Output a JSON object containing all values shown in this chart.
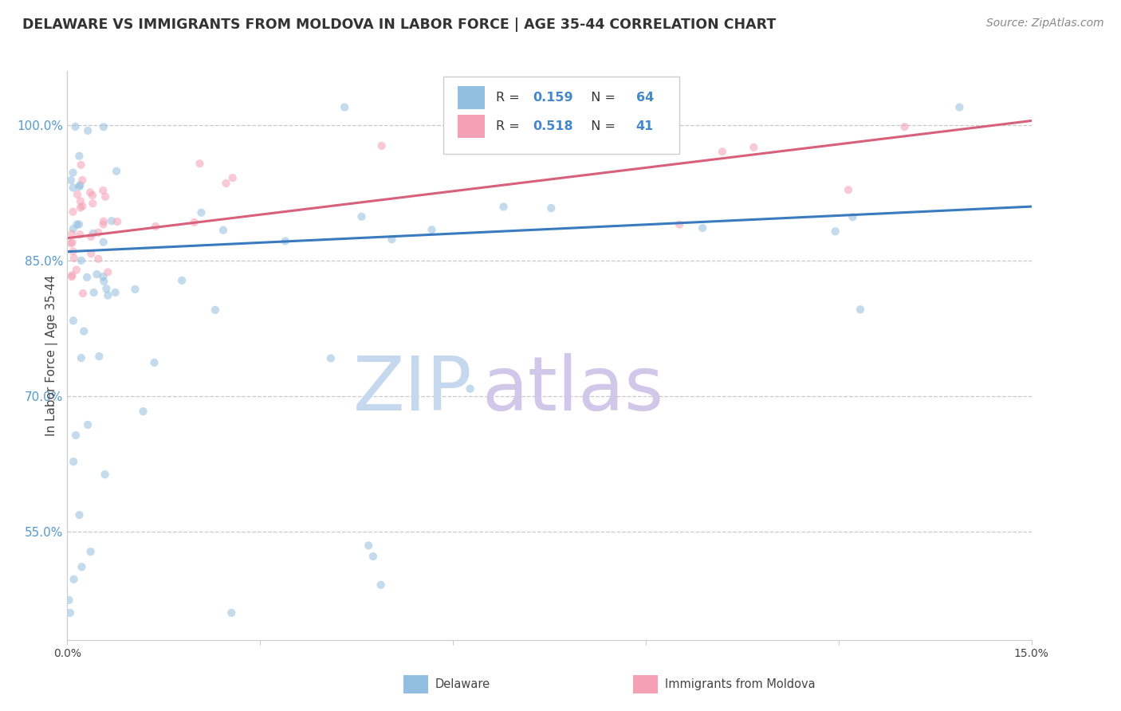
{
  "title": "DELAWARE VS IMMIGRANTS FROM MOLDOVA IN LABOR FORCE | AGE 35-44 CORRELATION CHART",
  "source": "Source: ZipAtlas.com",
  "ylabel": "In Labor Force | Age 35-44",
  "xlim": [
    0.0,
    0.15
  ],
  "ylim": [
    0.43,
    1.06
  ],
  "xticks": [
    0.0,
    0.03,
    0.06,
    0.09,
    0.12,
    0.15
  ],
  "yticks": [
    0.55,
    0.7,
    0.85,
    1.0
  ],
  "yticklabels": [
    "55.0%",
    "70.0%",
    "85.0%",
    "100.0%"
  ],
  "watermark_line1": "ZIP",
  "watermark_line2": "atlas",
  "legend_entries": [
    {
      "label": "Delaware",
      "R": 0.159,
      "N": 64
    },
    {
      "label": "Immigrants from Moldova",
      "R": 0.518,
      "N": 41
    }
  ],
  "blue_line_x": [
    0.0,
    0.15
  ],
  "blue_line_y": [
    0.86,
    0.91
  ],
  "pink_line_x": [
    0.0,
    0.15
  ],
  "pink_line_y": [
    0.875,
    1.005
  ],
  "scatter_alpha": 0.55,
  "scatter_size": 55,
  "blue_color": "#92bfdf",
  "pink_color": "#f4a0b5",
  "blue_line_color": "#3a7bbf",
  "pink_line_color": "#d9607a",
  "grid_color": "#c8c8c8",
  "background_color": "#ffffff",
  "title_fontsize": 12.5,
  "axis_label_fontsize": 11,
  "tick_fontsize": 10,
  "source_fontsize": 10,
  "watermark_color_zip": "#c5d8ed",
  "watermark_color_atlas": "#d0c8e8",
  "watermark_fontsize": 68
}
